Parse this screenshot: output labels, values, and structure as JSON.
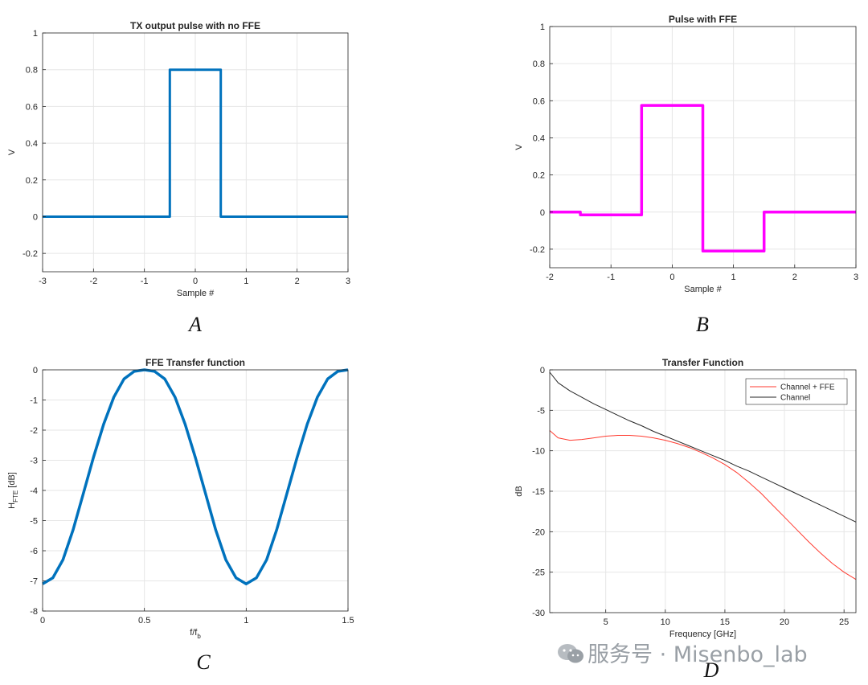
{
  "watermark": "服务号 · Misenbo_lab",
  "chart_data": [
    {
      "type": "line",
      "title": "TX output pulse with no FFE",
      "xlabel": "Sample #",
      "ylabel": "V",
      "caption": "A",
      "xlim": [
        -3,
        3
      ],
      "ylim": [
        -0.3,
        1
      ],
      "xticks": [
        -3,
        -2,
        -1,
        0,
        1,
        2,
        3
      ],
      "yticks": [
        -0.2,
        0,
        0.2,
        0.4,
        0.6,
        0.8,
        1
      ],
      "grid": true,
      "color": "#0072BD",
      "series": [
        {
          "x": [
            -3,
            -0.5,
            -0.5,
            0.5,
            0.5,
            3
          ],
          "y": [
            0,
            0,
            0.8,
            0.8,
            0,
            0
          ]
        }
      ]
    },
    {
      "type": "line",
      "title": "Pulse with FFE",
      "xlabel": "Sample #",
      "ylabel": "V",
      "caption": "B",
      "xlim": [
        -2,
        3
      ],
      "ylim": [
        -0.3,
        1
      ],
      "xticks": [
        -2,
        -1,
        0,
        1,
        2,
        3
      ],
      "yticks": [
        -0.2,
        0,
        0.2,
        0.4,
        0.6,
        0.8,
        1
      ],
      "grid": true,
      "color": "#FF00FF",
      "series": [
        {
          "x": [
            -2,
            -1.5,
            -1.5,
            -0.5,
            -0.5,
            0.5,
            0.5,
            1.5,
            1.5,
            3
          ],
          "y": [
            0,
            0,
            -0.015,
            -0.015,
            0.575,
            0.575,
            -0.21,
            -0.21,
            0,
            0
          ]
        }
      ]
    },
    {
      "type": "line",
      "title": "FFE Transfer function",
      "xlabel": "f/f",
      "xlabel_sub": "b",
      "ylabel": "H",
      "ylabel_sub": "FTE",
      "ylabel_suffix": " [dB]",
      "caption": "C",
      "xlim": [
        0,
        1.5
      ],
      "ylim": [
        -8,
        0
      ],
      "xticks": [
        0,
        0.5,
        1,
        1.5
      ],
      "yticks": [
        -8,
        -7,
        -6,
        -5,
        -4,
        -3,
        -2,
        -1,
        0
      ],
      "grid": true,
      "color": "#0072BD",
      "series": [
        {
          "x": [
            0,
            0.05,
            0.1,
            0.15,
            0.2,
            0.25,
            0.3,
            0.35,
            0.4,
            0.45,
            0.5,
            0.55,
            0.6,
            0.65,
            0.7,
            0.75,
            0.8,
            0.85,
            0.9,
            0.95,
            1.0,
            1.05,
            1.1,
            1.15,
            1.2,
            1.25,
            1.3,
            1.35,
            1.4,
            1.45,
            1.5
          ],
          "y": [
            -7.1,
            -6.9,
            -6.3,
            -5.3,
            -4.1,
            -2.9,
            -1.8,
            -0.9,
            -0.3,
            -0.05,
            0,
            -0.05,
            -0.3,
            -0.9,
            -1.8,
            -2.9,
            -4.1,
            -5.3,
            -6.3,
            -6.9,
            -7.1,
            -6.9,
            -6.3,
            -5.3,
            -4.1,
            -2.9,
            -1.8,
            -0.9,
            -0.3,
            -0.05,
            0
          ]
        }
      ]
    },
    {
      "type": "line",
      "title": "Transfer Function",
      "xlabel": "Frequency [GHz]",
      "ylabel": "dB",
      "caption": "D",
      "xlim": [
        0.3,
        26
      ],
      "ylim": [
        -30,
        0
      ],
      "xticks": [
        5,
        10,
        15,
        20,
        25
      ],
      "yticks": [
        -30,
        -25,
        -20,
        -15,
        -10,
        -5,
        0
      ],
      "grid": true,
      "legend": "top-right",
      "series": [
        {
          "name": "Channel + FFE",
          "color": "#FF3B30",
          "x": [
            0.3,
            1,
            2,
            3,
            4,
            5,
            6,
            7,
            8,
            9,
            10,
            11,
            12,
            13,
            14,
            15,
            16,
            17,
            18,
            19,
            20,
            21,
            22,
            23,
            24,
            25,
            26
          ],
          "y": [
            -7.5,
            -8.4,
            -8.7,
            -8.6,
            -8.4,
            -8.2,
            -8.1,
            -8.1,
            -8.2,
            -8.4,
            -8.7,
            -9.1,
            -9.6,
            -10.2,
            -10.9,
            -11.7,
            -12.7,
            -13.9,
            -15.2,
            -16.7,
            -18.2,
            -19.7,
            -21.2,
            -22.6,
            -23.9,
            -25.0,
            -25.9
          ]
        },
        {
          "name": "Channel",
          "color": "#262626",
          "x": [
            0.3,
            1,
            2,
            3,
            4,
            5,
            6,
            7,
            8,
            9,
            10,
            11,
            12,
            13,
            14,
            15,
            16,
            17,
            18,
            19,
            20,
            21,
            22,
            23,
            24,
            25,
            26
          ],
          "y": [
            -0.3,
            -1.6,
            -2.6,
            -3.4,
            -4.2,
            -4.9,
            -5.6,
            -6.3,
            -6.9,
            -7.6,
            -8.2,
            -8.8,
            -9.4,
            -10.0,
            -10.6,
            -11.2,
            -11.9,
            -12.5,
            -13.2,
            -13.9,
            -14.6,
            -15.3,
            -16.0,
            -16.7,
            -17.4,
            -18.1,
            -18.8
          ]
        }
      ]
    }
  ]
}
